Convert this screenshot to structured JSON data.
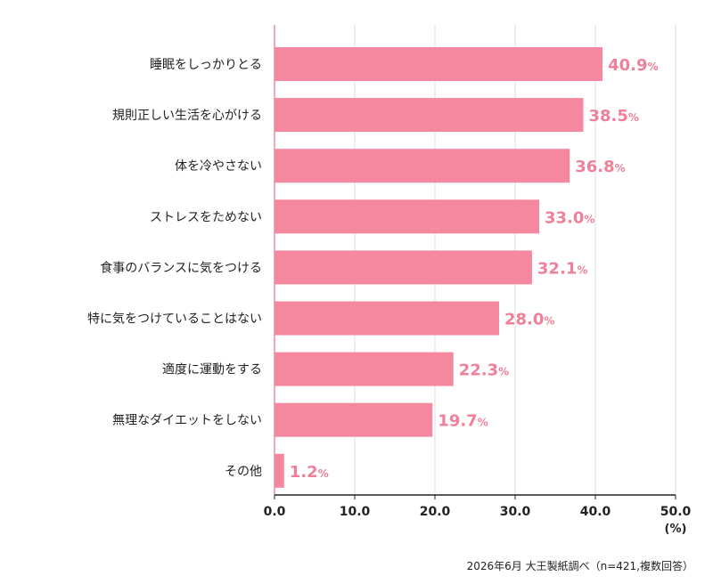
{
  "chart_data": {
    "type": "bar",
    "orientation": "horizontal",
    "categories": [
      "睡眠をしっかりとる",
      "規則正しい生活を心がける",
      "体を冷やさない",
      "ストレスをためない",
      "食事のバランスに気をつける",
      "特に気をつけていることはない",
      "適度に運動をする",
      "無理なダイエットをしない",
      "その他"
    ],
    "values": [
      40.9,
      38.5,
      36.8,
      33.0,
      32.1,
      28.0,
      22.3,
      19.7,
      1.2
    ],
    "value_labels": [
      "40.9",
      "38.5",
      "36.8",
      "33.0",
      "32.1",
      "28.0",
      "22.3",
      "19.7",
      "1.2"
    ],
    "value_suffix": "%",
    "xlim": [
      0,
      50
    ],
    "xticks": [
      0,
      10,
      20,
      30,
      40,
      50
    ],
    "xtick_labels": [
      "0.0",
      "10.0",
      "20.0",
      "30.0",
      "40.0",
      "50.0"
    ],
    "xlabel": "(%)",
    "grid": true,
    "bar_color": "#f5879f",
    "value_label_color": "#f0809a",
    "axis_color": "#f08aa0",
    "grid_color": "#dddddd"
  },
  "source_note": "2026年6月 大王製紙調べ（n=421,複数回答）"
}
